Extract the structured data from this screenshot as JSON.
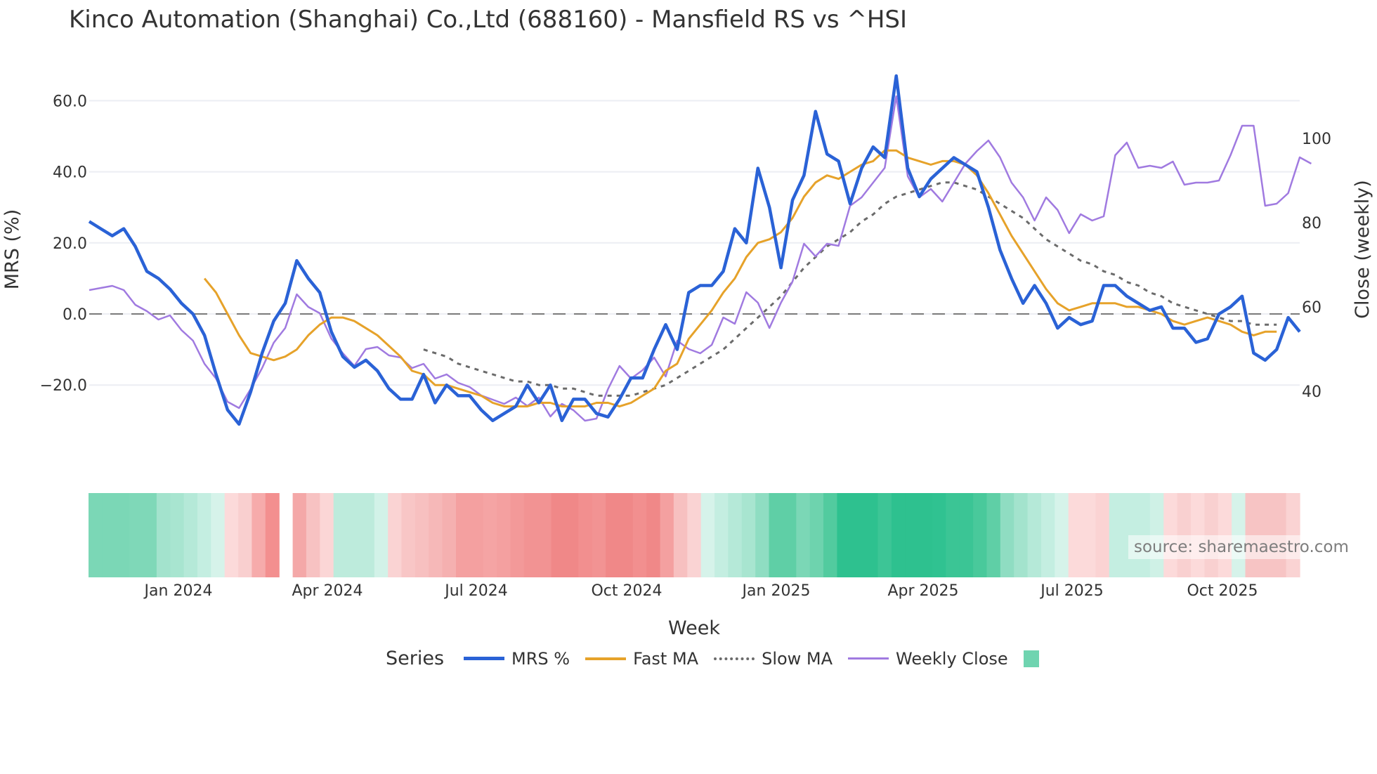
{
  "title": "Kinco Automation (Shanghai) Co.,Ltd (688160) - Mansfield RS vs ^HSI",
  "source_label": "source: sharemaestro.com",
  "legend": {
    "title": "Series",
    "items": [
      {
        "label": "MRS %",
        "color": "#2a62d6",
        "style": "solid"
      },
      {
        "label": "Fast MA",
        "color": "#e6a22a",
        "style": "solid"
      },
      {
        "label": "Slow MA",
        "color": "#6b6b6b",
        "style": "dotted"
      },
      {
        "label": "Weekly Close",
        "color": "#a07ae0",
        "style": "solid"
      },
      {
        "label": "",
        "color": "#6fd4b0",
        "style": "box"
      }
    ]
  },
  "chart_data": {
    "type": "line",
    "title": "Kinco Automation (Shanghai) Co.,Ltd (688160) - Mansfield RS vs ^HSI",
    "xlabel": "Week",
    "ylabel": "MRS (%)",
    "y2label": "Close (weekly)",
    "x_ticks": [
      "Jan 2024",
      "Apr 2024",
      "Jul 2024",
      "Oct 2024",
      "Jan 2025",
      "Apr 2025",
      "Jul 2025",
      "Oct 2025"
    ],
    "y_ticks": [
      "60.0",
      "40.0",
      "20.0",
      "0.0",
      "−20.0"
    ],
    "y2_ticks": [
      "100",
      "80",
      "60",
      "40"
    ],
    "ylim": [
      -34,
      70
    ],
    "y2lim": [
      25,
      116
    ],
    "zero_line": 0,
    "series": [
      {
        "name": "MRS %",
        "axis": "y",
        "values": [
          26,
          24,
          22,
          24,
          19,
          12,
          10,
          7,
          3,
          0,
          -6,
          -17,
          -27,
          -31,
          -22,
          -11,
          -2,
          3,
          15,
          10,
          6,
          -5,
          -12,
          -15,
          -13,
          -16,
          -21,
          -24,
          -24,
          -17,
          -25,
          -20,
          -23,
          -23,
          -27,
          -30,
          -28,
          -26,
          -20,
          -25,
          -20,
          -30,
          -24,
          -24,
          -28,
          -29,
          -24,
          -18,
          -18,
          -10,
          -3,
          -10,
          6,
          8,
          8,
          12,
          24,
          20,
          41,
          30,
          13,
          32,
          39,
          57,
          45,
          43,
          31,
          41,
          47,
          44,
          67,
          41,
          33,
          38,
          41,
          44,
          42,
          40,
          30,
          18,
          10,
          3,
          8,
          3,
          -4,
          -1,
          -3,
          -2,
          8,
          8,
          5,
          3,
          1,
          2,
          -4,
          -4,
          -8,
          -7,
          0,
          2,
          5,
          -11,
          -13,
          -10,
          -1,
          -5
        ]
      },
      {
        "name": "Fast MA",
        "axis": "y",
        "values": [
          null,
          null,
          null,
          null,
          null,
          null,
          null,
          null,
          null,
          null,
          10,
          6,
          0,
          -6,
          -11,
          -12,
          -13,
          -12,
          -10,
          -6,
          -3,
          -1,
          -1,
          -2,
          -4,
          -6,
          -9,
          -12,
          -16,
          -17,
          -20,
          -20,
          -21,
          -22,
          -23,
          -25,
          -26,
          -26,
          -26,
          -25,
          -25,
          -26,
          -26,
          -26,
          -25,
          -25,
          -26,
          -25,
          -23,
          -21,
          -16,
          -14,
          -7,
          -3,
          1,
          6,
          10,
          16,
          20,
          21,
          23,
          27,
          33,
          37,
          39,
          38,
          40,
          42,
          43,
          46,
          46,
          44,
          43,
          42,
          43,
          43,
          42,
          39,
          34,
          28,
          22,
          17,
          12,
          7,
          3,
          1,
          2,
          3,
          3,
          3,
          2,
          2,
          1,
          0,
          -2,
          -3,
          -2,
          -1,
          -2,
          -3,
          -5,
          -6,
          -5,
          -5
        ]
      },
      {
        "name": "Slow MA",
        "axis": "y",
        "values": [
          null,
          null,
          null,
          null,
          null,
          null,
          null,
          null,
          null,
          null,
          null,
          null,
          null,
          null,
          null,
          null,
          null,
          null,
          null,
          null,
          null,
          null,
          null,
          null,
          null,
          null,
          null,
          null,
          null,
          -10,
          -11,
          -12,
          -14,
          -15,
          -16,
          -17,
          -18,
          -19,
          -19,
          -20,
          -20,
          -21,
          -21,
          -22,
          -23,
          -23,
          -23,
          -23,
          -22,
          -21,
          -20,
          -18,
          -16,
          -14,
          -12,
          -10,
          -7,
          -4,
          -1,
          2,
          5,
          9,
          13,
          16,
          19,
          21,
          23,
          26,
          28,
          31,
          33,
          34,
          35,
          36,
          37,
          37,
          36,
          35,
          33,
          31,
          29,
          27,
          24,
          21,
          19,
          17,
          15,
          14,
          12,
          11,
          9,
          8,
          6,
          5,
          3,
          2,
          1,
          0,
          -1,
          -2,
          -2,
          -3,
          -3,
          -3
        ]
      },
      {
        "name": "Weekly Close",
        "axis": "y2",
        "values": [
          64,
          64.5,
          65,
          64,
          60.5,
          59,
          57,
          58,
          54.5,
          52,
          46.5,
          43,
          37.5,
          36,
          40.5,
          45.5,
          51.5,
          55,
          63,
          60,
          58.5,
          52.5,
          49,
          46,
          50,
          50.5,
          48.5,
          48,
          45.5,
          46.5,
          43,
          44,
          42,
          41,
          39,
          38,
          37,
          38.5,
          36.5,
          38.5,
          34,
          37,
          35.5,
          33,
          33.5,
          40.5,
          46,
          43,
          45,
          48,
          43.5,
          52,
          50,
          49,
          51,
          57.5,
          56,
          63.5,
          61,
          55,
          61,
          66,
          75,
          72,
          75,
          74.5,
          84,
          86,
          89.5,
          93,
          110,
          91,
          86,
          88,
          85,
          89.5,
          94,
          97,
          99.5,
          95.5,
          89.5,
          86,
          80.5,
          86,
          83,
          77.5,
          82,
          80.5,
          81.5,
          96,
          99,
          93,
          93.5,
          93,
          94.5,
          89,
          89.5,
          89.5,
          90,
          96,
          103,
          103,
          84,
          84.5,
          87,
          95.5,
          94
        ]
      }
    ],
    "heatmap": {
      "description": "Weekly MRS regime band below main chart (green = positive, red = negative)",
      "colors": [
        "#7bd7b6",
        "#7bd7b6",
        "#7bd7b6",
        "#7fd8b8",
        "#7fd8b8",
        "#a3e3cd",
        "#a8e5d0",
        "#b5e9d8",
        "#c4eee1",
        "#d6f3ea",
        "#fcdada",
        "#f9cfcf",
        "#f6abab",
        "#f38f8f",
        "gap",
        "#f4a8a8",
        "#f7c2c2",
        "#fbd6d6",
        "#bdebdc",
        "#bdebdc",
        "#bdebdc",
        "#d2f2e8",
        "#fad3d3",
        "#f8c6c6",
        "#f7c0c0",
        "#f6b8b8",
        "#f5b0b0",
        "#f4a0a0",
        "#f4a0a0",
        "#f5a4a4",
        "#f4a0a0",
        "#f39999",
        "#f29393",
        "#f29393",
        "#f08888",
        "#f08888",
        "#f28f8f",
        "#f29393",
        "#f08888",
        "#f08888",
        "#f28f8f",
        "#f08888",
        "#f4a0a0",
        "#f7c0c0",
        "#fad3d3",
        "#d6f3ea",
        "#c4eee1",
        "#b5e9d8",
        "#a8e5d0",
        "#8fddc2",
        "#5fcfa6",
        "#5fcfa6",
        "#7bd7b6",
        "#6ed3ae",
        "#52cb9f",
        "#2ec18f",
        "#2ec18f",
        "#2ec18f",
        "#3dc596",
        "#2ec18f",
        "#2ec18f",
        "#2ec18f",
        "#30c291",
        "#3bc595",
        "#3bc595",
        "#49c99b",
        "#5fcfa6",
        "#8fddc2",
        "#a3e3cd",
        "#b5e9d8",
        "#c4eee1",
        "#d6f3ea",
        "#fcdada",
        "#fcdada",
        "#fbd3d3",
        "#c4eee1",
        "#c4eee1",
        "#c4eee1",
        "#cff1e6",
        "#fcdada",
        "#f9d0d0",
        "#fcdada",
        "#f9d0d0",
        "#fcdada",
        "#d6f3ea",
        "#f7c4c4",
        "#f7c4c4",
        "#f7c4c4",
        "#fad3d3"
      ]
    }
  }
}
